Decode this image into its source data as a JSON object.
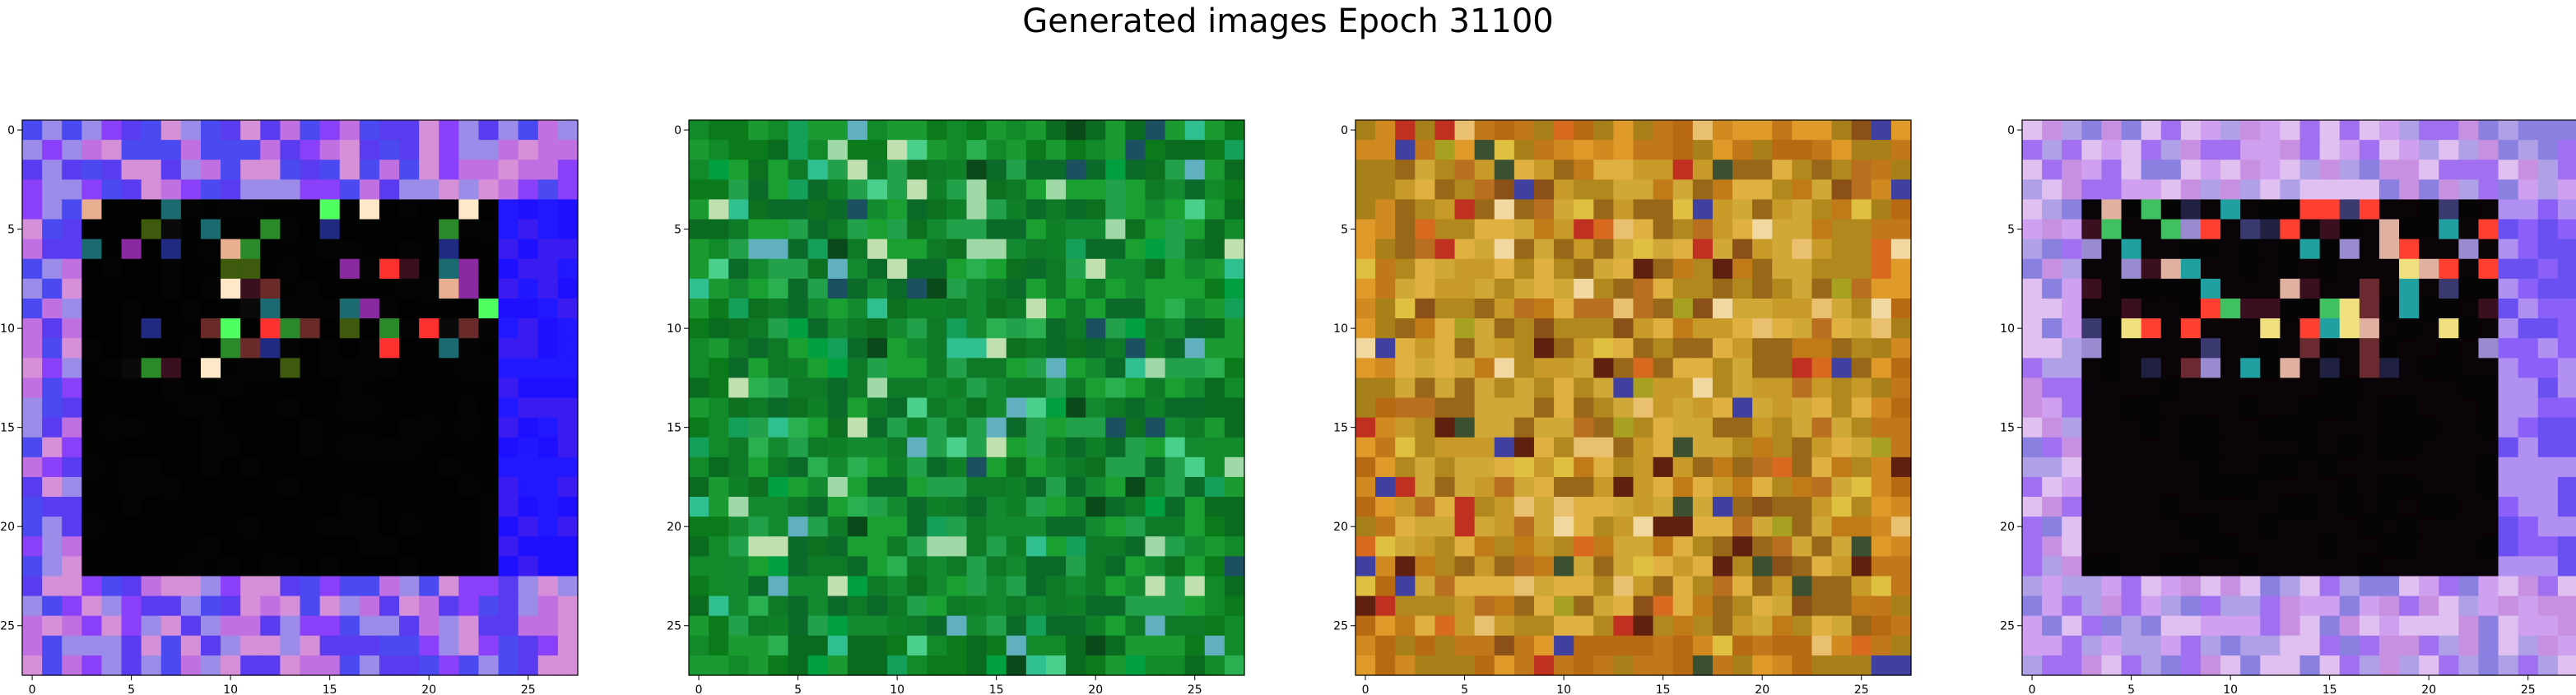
{
  "title": "Generated images Epoch 31100",
  "chart_data": [
    {
      "type": "heatmap",
      "xticks": [
        "0",
        "5",
        "10",
        "15",
        "20",
        "25"
      ],
      "yticks": [
        "0",
        "5",
        "10",
        "15",
        "20",
        "25"
      ],
      "xlim": [
        -0.5,
        27.5
      ],
      "ylim": [
        27.5,
        -0.5
      ],
      "grid": false,
      "palette": {
        "frame": [
          "#9a8ce8",
          "#c070e0",
          "#4a4af0",
          "#8a40f8",
          "#d690d8",
          "#5a3cf0"
        ],
        "edge": [
          "#1e10ff",
          "#3a1cf0",
          "#2218ff"
        ],
        "texture": [
          "#3a1020",
          "#6a2a2a",
          "#ff3030",
          "#e8b090",
          "#50ff60",
          "#2a8a2a",
          "#1a6a70",
          "#8a2aa0",
          "#ffe8c8",
          "#202a80",
          "#0a0a0a",
          "#3d5a0d"
        ],
        "center": [
          "#020202",
          "#040404",
          "#020402"
        ]
      }
    },
    {
      "type": "heatmap",
      "xticks": [
        "0",
        "5",
        "10",
        "15",
        "20",
        "25"
      ],
      "yticks": [
        "0",
        "5",
        "10",
        "15",
        "20",
        "25"
      ],
      "xlim": [
        -0.5,
        27.5
      ],
      "ylim": [
        27.5,
        -0.5
      ],
      "grid": false,
      "palette": {
        "frame": [
          "#0a7a1a",
          "#128a2a",
          "#1a9a30",
          "#0a6a20"
        ],
        "edge": [
          "#0c7020",
          "#108028"
        ],
        "texture": [
          "#30c090",
          "#4ad08a",
          "#a0d8a8",
          "#1a5060",
          "#00a040",
          "#2ab050",
          "#0a4a1a",
          "#60b0c0",
          "#14a058",
          "#c0e0b0"
        ],
        "center": [
          "#138a30",
          "#0e7a28",
          "#22a04a",
          "#0b6a2a",
          "#1aa030"
        ]
      }
    },
    {
      "type": "heatmap",
      "xticks": [
        "0",
        "5",
        "10",
        "15",
        "20",
        "25"
      ],
      "yticks": [
        "0",
        "5",
        "10",
        "15",
        "20",
        "25"
      ],
      "xlim": [
        -0.5,
        27.5
      ],
      "ylim": [
        27.5,
        -0.5
      ],
      "grid": false,
      "palette": {
        "frame": [
          "#c0781a",
          "#d08a20",
          "#b86a12",
          "#a8801a",
          "#e09a2a"
        ],
        "edge": [
          "#c07a18",
          "#b87020"
        ],
        "texture": [
          "#e0c040",
          "#602010",
          "#c03020",
          "#4040a0",
          "#f0d8a0",
          "#3a5030",
          "#a8a020",
          "#d86a20",
          "#e8c070",
          "#8a5018"
        ],
        "center": [
          "#c89a28",
          "#b0881e",
          "#d0a838",
          "#986818",
          "#e0b040"
        ]
      }
    },
    {
      "type": "heatmap",
      "xticks": [
        "0",
        "5",
        "10",
        "15",
        "20",
        "25"
      ],
      "yticks": [
        "0",
        "5",
        "10",
        "15",
        "20",
        "25"
      ],
      "xlim": [
        -0.5,
        27.5
      ],
      "ylim": [
        27.5,
        -0.5
      ],
      "grid": false,
      "palette": {
        "frame": [
          "#b0a0e8",
          "#d0a0f0",
          "#8a80e0",
          "#e0c0f0",
          "#a070f0",
          "#c890e0"
        ],
        "edge": [
          "#6a50f0",
          "#8a60f8",
          "#b090f0"
        ],
        "texture": [
          "#ff4030",
          "#f0e080",
          "#40c060",
          "#202040",
          "#3a1020",
          "#9a8ad0",
          "#3a3a70",
          "#e0b0a0",
          "#6a2a30",
          "#20a0a0"
        ],
        "center": [
          "#080408",
          "#0a0406",
          "#050505"
        ]
      }
    }
  ]
}
